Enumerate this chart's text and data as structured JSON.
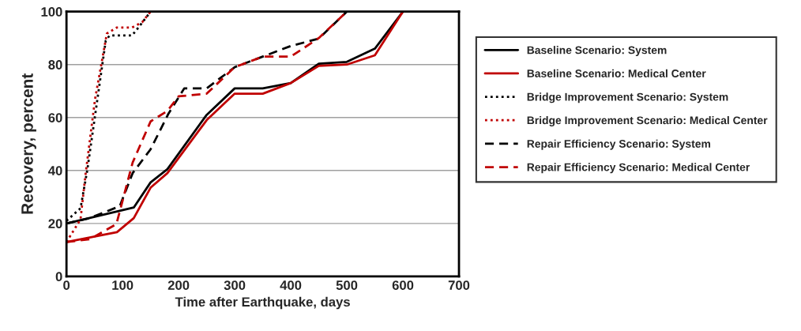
{
  "chart_data": {
    "type": "line",
    "xlabel": "Time after Earthquake, days",
    "ylabel": "Recovery, percent",
    "xlim": [
      0,
      700
    ],
    "xticks": [
      0,
      100,
      200,
      300,
      400,
      500,
      600,
      700
    ],
    "ylim": [
      0,
      100
    ],
    "yticks": [
      0,
      20,
      40,
      60,
      80,
      100
    ],
    "grid": "y",
    "legend": "right",
    "series": [
      {
        "name": "Baseline Scenario: System",
        "color": "#000000",
        "line_style": "solid",
        "x": [
          0,
          120,
          150,
          180,
          250,
          300,
          350,
          400,
          450,
          500,
          550,
          600,
          700
        ],
        "values": [
          20,
          26,
          35.5,
          40.5,
          61,
          71,
          71,
          73,
          80.3,
          81,
          86,
          100,
          100
        ]
      },
      {
        "name": "Baseline Scenario: Medical Center",
        "color": "#c00000",
        "line_style": "solid",
        "x": [
          0,
          90,
          120,
          150,
          180,
          250,
          300,
          350,
          400,
          450,
          500,
          550,
          600,
          700
        ],
        "values": [
          13,
          16.7,
          22,
          33.5,
          39,
          59,
          69,
          69,
          73,
          79.5,
          80,
          83.5,
          100,
          100
        ]
      },
      {
        "name": "Bridge Improvement Scenario: System",
        "color": "#000000",
        "line_style": "dotted",
        "x": [
          0,
          25,
          37,
          70,
          77,
          117,
          132,
          150,
          700
        ],
        "values": [
          21,
          25.7,
          40,
          89,
          91,
          91,
          95,
          100,
          100
        ]
      },
      {
        "name": "Bridge Improvement Scenario: Medical Center",
        "color": "#c00000",
        "line_style": "dotted",
        "x": [
          0,
          25,
          34,
          51,
          72,
          90,
          117,
          135,
          150,
          700
        ],
        "values": [
          13,
          21.5,
          38.5,
          67,
          91.7,
          94,
          94,
          96,
          100,
          100
        ]
      },
      {
        "name": "Repair Efficiency Scenario: System",
        "color": "#000000",
        "line_style": "dashed",
        "x": [
          0,
          41,
          95,
          118,
          150,
          182,
          210,
          250,
          300,
          400,
          450,
          500,
          700
        ],
        "values": [
          20,
          22,
          26.5,
          39,
          48,
          61.5,
          71,
          71,
          79,
          87,
          89.8,
          100,
          100
        ]
      },
      {
        "name": "Repair Efficiency Scenario: Medical Center",
        "color": "#c00000",
        "line_style": "dashed",
        "x": [
          0,
          41,
          89,
          118,
          150,
          180,
          200,
          250,
          300,
          350,
          400,
          450,
          500,
          700
        ],
        "values": [
          13,
          14,
          19.7,
          43,
          58.5,
          62.5,
          68,
          69,
          79,
          83,
          83,
          90,
          100,
          100
        ]
      }
    ]
  }
}
